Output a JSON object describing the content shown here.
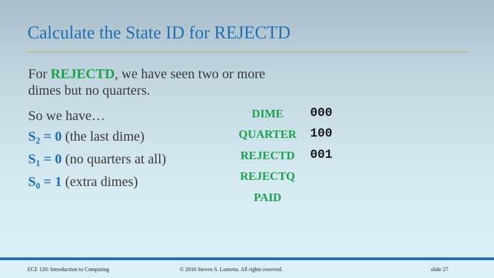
{
  "slide": {
    "title": "Calculate the State ID for REJECTD",
    "intro_prefix": "For ",
    "intro_state": "REJECTD",
    "intro_suffix_line1": ", we have seen two or more",
    "intro_line2": "dimes but no quarters.",
    "so_we_have": "So we have…",
    "bits": [
      {
        "var": "S",
        "sub": "2",
        "eq": " = 0",
        "note": " (the last dime)"
      },
      {
        "var": "S",
        "sub": "1",
        "eq": " = 0",
        "note": " (no quarters at all)"
      },
      {
        "var": "S",
        "sub": "0",
        "eq": " = 1",
        "note": " (extra dimes)"
      }
    ],
    "states": [
      {
        "label": "DIME",
        "code": "000"
      },
      {
        "label": "QUARTER",
        "code": "100"
      },
      {
        "label": "REJECTD",
        "code": "001"
      },
      {
        "label": "REJECTQ",
        "code": ""
      },
      {
        "label": "PAID",
        "code": ""
      }
    ]
  },
  "footer": {
    "course": "ECE 120: Introduction to Computing",
    "copyright": "© 2016 Steven S. Lumetta.  All rights reserved.",
    "slide_number": "slide 27"
  },
  "colors": {
    "title": "#1f6fb4",
    "state_green": "#1aa34a",
    "footer_bar": "#1f6fb4"
  }
}
